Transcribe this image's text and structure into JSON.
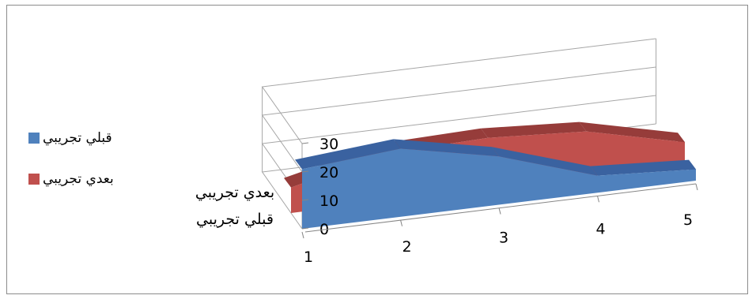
{
  "chart_data": {
    "type": "area",
    "chart_style": "3d-area",
    "categories": [
      "1",
      "2",
      "3",
      "4",
      "5"
    ],
    "y_ticks": [
      "0",
      "10",
      "20",
      "30"
    ],
    "ylim": [
      0,
      30
    ],
    "grid": true,
    "legend_position": "left",
    "series": [
      {
        "name": "قبلي تجريبي",
        "values": [
          21,
          24,
          17,
          6,
          4
        ]
      },
      {
        "name": "بعدي تجريبي",
        "values": [
          9,
          17,
          18,
          16,
          8
        ]
      }
    ],
    "series_axis_labels": [
      "بعدي تجريبي",
      "قبلي تجريبي"
    ]
  },
  "colors": {
    "series_front": "#4f81bd",
    "series_front_dark": "#3a62a0",
    "series_back": "#c0504d",
    "series_back_dark": "#963c3a",
    "grid": "#a6a6a6",
    "axis": "#868686"
  }
}
